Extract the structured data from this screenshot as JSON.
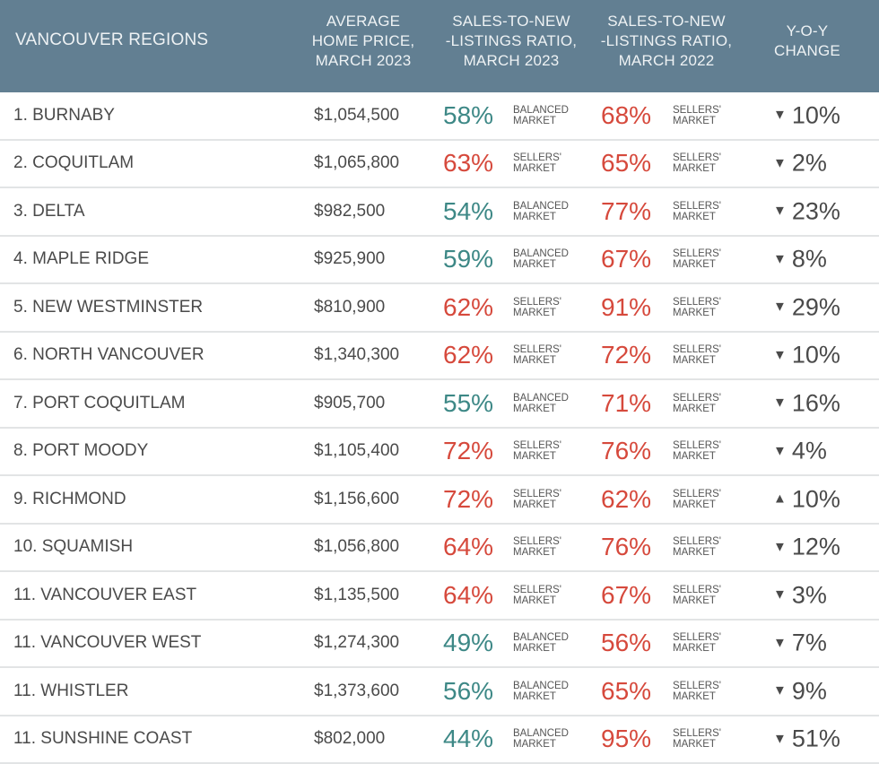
{
  "colors": {
    "header_bg": "#627f92",
    "balanced": "#3d8886",
    "sellers": "#d6493c"
  },
  "chart_data": {
    "type": "table",
    "headers": [
      "VANCOUVER REGIONS",
      "AVERAGE HOME PRICE, MARCH 2023",
      "SALES-TO-NEW -LISTINGS RATIO, MARCH 2023",
      "SALES-TO-NEW -LISTINGS RATIO, MARCH 2022",
      "Y-O-Y CHANGE"
    ],
    "header_lines": [
      [
        "VANCOUVER REGIONS"
      ],
      [
        "AVERAGE",
        "HOME PRICE,",
        "MARCH 2023"
      ],
      [
        "SALES-TO-NEW",
        "-LISTINGS RATIO,",
        "MARCH 2023"
      ],
      [
        "SALES-TO-NEW",
        "-LISTINGS RATIO,",
        "MARCH 2022"
      ],
      [
        "Y-O-Y",
        "CHANGE"
      ]
    ],
    "market_labels": {
      "balanced": [
        "BALANCED",
        "MARKET"
      ],
      "sellers": [
        "SELLERS'",
        "MARKET"
      ]
    },
    "rows": [
      {
        "region": "1. BURNABY",
        "price": "$1,054,500",
        "ratio_2023": "58%",
        "market_2023": "balanced",
        "ratio_2022": "68%",
        "market_2022": "sellers",
        "direction": "down",
        "yoy": "10%"
      },
      {
        "region": "2. COQUITLAM",
        "price": "$1,065,800",
        "ratio_2023": "63%",
        "market_2023": "sellers",
        "ratio_2022": "65%",
        "market_2022": "sellers",
        "direction": "down",
        "yoy": "2%"
      },
      {
        "region": "3. DELTA",
        "price": "$982,500",
        "ratio_2023": "54%",
        "market_2023": "balanced",
        "ratio_2022": "77%",
        "market_2022": "sellers",
        "direction": "down",
        "yoy": "23%"
      },
      {
        "region": "4. MAPLE RIDGE",
        "price": "$925,900",
        "ratio_2023": "59%",
        "market_2023": "balanced",
        "ratio_2022": "67%",
        "market_2022": "sellers",
        "direction": "down",
        "yoy": "8%"
      },
      {
        "region": "5. NEW WESTMINSTER",
        "price": "$810,900",
        "ratio_2023": "62%",
        "market_2023": "sellers",
        "ratio_2022": "91%",
        "market_2022": "sellers",
        "direction": "down",
        "yoy": "29%"
      },
      {
        "region": "6. NORTH VANCOUVER",
        "price": "$1,340,300",
        "ratio_2023": "62%",
        "market_2023": "sellers",
        "ratio_2022": "72%",
        "market_2022": "sellers",
        "direction": "down",
        "yoy": "10%"
      },
      {
        "region": "7. PORT COQUITLAM",
        "price": "$905,700",
        "ratio_2023": "55%",
        "market_2023": "balanced",
        "ratio_2022": "71%",
        "market_2022": "sellers",
        "direction": "down",
        "yoy": "16%"
      },
      {
        "region": "8. PORT MOODY",
        "price": "$1,105,400",
        "ratio_2023": "72%",
        "market_2023": "sellers",
        "ratio_2022": "76%",
        "market_2022": "sellers",
        "direction": "down",
        "yoy": "4%"
      },
      {
        "region": "9. RICHMOND",
        "price": "$1,156,600",
        "ratio_2023": "72%",
        "market_2023": "sellers",
        "ratio_2022": "62%",
        "market_2022": "sellers",
        "direction": "up",
        "yoy": "10%"
      },
      {
        "region": "10. SQUAMISH",
        "price": "$1,056,800",
        "ratio_2023": "64%",
        "market_2023": "sellers",
        "ratio_2022": "76%",
        "market_2022": "sellers",
        "direction": "down",
        "yoy": "12%"
      },
      {
        "region": "11. VANCOUVER EAST",
        "price": "$1,135,500",
        "ratio_2023": "64%",
        "market_2023": "sellers",
        "ratio_2022": "67%",
        "market_2022": "sellers",
        "direction": "down",
        "yoy": "3%"
      },
      {
        "region": "11. VANCOUVER WEST",
        "price": "$1,274,300",
        "ratio_2023": "49%",
        "market_2023": "balanced",
        "ratio_2022": "56%",
        "market_2022": "sellers",
        "direction": "down",
        "yoy": "7%"
      },
      {
        "region": "11. WHISTLER",
        "price": "$1,373,600",
        "ratio_2023": "56%",
        "market_2023": "balanced",
        "ratio_2022": "65%",
        "market_2022": "sellers",
        "direction": "down",
        "yoy": "9%"
      },
      {
        "region": "11. SUNSHINE COAST",
        "price": "$802,000",
        "ratio_2023": "44%",
        "market_2023": "balanced",
        "ratio_2022": "95%",
        "market_2022": "sellers",
        "direction": "down",
        "yoy": "51%"
      }
    ]
  }
}
